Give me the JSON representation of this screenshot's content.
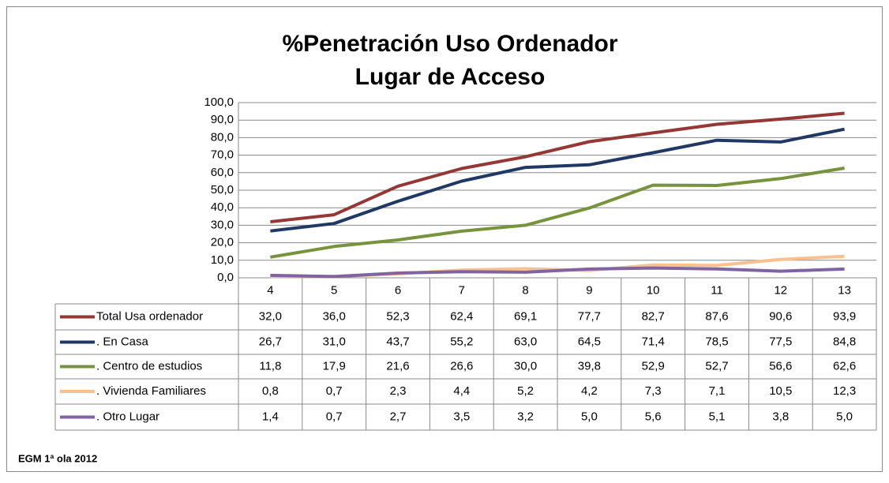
{
  "chart_data": {
    "type": "line",
    "title": "%Penetración Uso Ordenador",
    "subtitle": "Lugar de Acceso",
    "categories": [
      "4",
      "5",
      "6",
      "7",
      "8",
      "9",
      "10",
      "11",
      "12",
      "13"
    ],
    "series": [
      {
        "name": "Total Usa ordenador",
        "color": "#953735",
        "values": [
          32.0,
          36.0,
          52.3,
          62.4,
          69.1,
          77.7,
          82.7,
          87.6,
          90.6,
          93.9
        ],
        "value_labels": [
          "32,0",
          "36,0",
          "52,3",
          "62,4",
          "69,1",
          "77,7",
          "82,7",
          "87,6",
          "90,6",
          "93,9"
        ]
      },
      {
        "name": ". En Casa",
        "color": "#1f3864",
        "values": [
          26.7,
          31.0,
          43.7,
          55.2,
          63.0,
          64.5,
          71.4,
          78.5,
          77.5,
          84.8
        ],
        "value_labels": [
          "26,7",
          "31,0",
          "43,7",
          "55,2",
          "63,0",
          "64,5",
          "71,4",
          "78,5",
          "77,5",
          "84,8"
        ]
      },
      {
        "name": ". Centro de estudios",
        "color": "#77933c",
        "values": [
          11.8,
          17.9,
          21.6,
          26.6,
          30.0,
          39.8,
          52.9,
          52.7,
          56.6,
          62.6
        ],
        "value_labels": [
          "11,8",
          "17,9",
          "21,6",
          "26,6",
          "30,0",
          "39,8",
          "52,9",
          "52,7",
          "56,6",
          "62,6"
        ]
      },
      {
        "name": ". Vivienda Familiares",
        "color": "#fac090",
        "values": [
          0.8,
          0.7,
          2.3,
          4.4,
          5.2,
          4.2,
          7.3,
          7.1,
          10.5,
          12.3
        ],
        "value_labels": [
          "0,8",
          "0,7",
          "2,3",
          "4,4",
          "5,2",
          "4,2",
          "7,3",
          "7,1",
          "10,5",
          "12,3"
        ]
      },
      {
        "name": ". Otro Lugar",
        "color": "#8064a2",
        "values": [
          1.4,
          0.7,
          2.7,
          3.5,
          3.2,
          5.0,
          5.6,
          5.1,
          3.8,
          5.0
        ],
        "value_labels": [
          "1,4",
          "0,7",
          "2,7",
          "3,5",
          "3,2",
          "5,0",
          "5,6",
          "5,1",
          "3,8",
          "5,0"
        ]
      }
    ],
    "ylim": [
      0,
      100
    ],
    "yticks": [
      {
        "value": 0,
        "label": "0,0"
      },
      {
        "value": 10,
        "label": "10,0"
      },
      {
        "value": 20,
        "label": "20,0"
      },
      {
        "value": 30,
        "label": "30,0"
      },
      {
        "value": 40,
        "label": "40,0"
      },
      {
        "value": 50,
        "label": "50,0"
      },
      {
        "value": 60,
        "label": "60,0"
      },
      {
        "value": 70,
        "label": "70,0"
      },
      {
        "value": 80,
        "label": "80,0"
      },
      {
        "value": 90,
        "label": "90,0"
      },
      {
        "value": 100,
        "label": "100,0"
      }
    ],
    "grid": true,
    "source": "EGM 1ª ola 2012"
  }
}
